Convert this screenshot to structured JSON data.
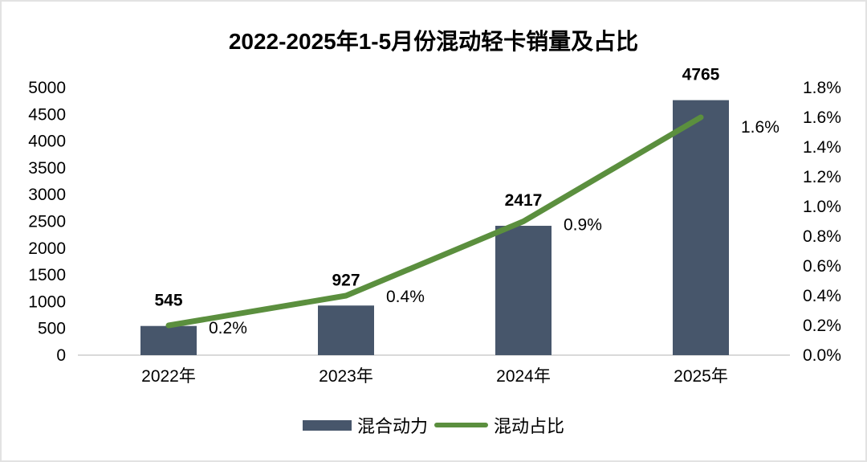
{
  "chart_data": {
    "type": "combo_bar_line",
    "title": "2022-2025年1-5月份混动轻卡销量及占比",
    "categories": [
      "2022年",
      "2023年",
      "2024年",
      "2025年"
    ],
    "series": [
      {
        "name": "混合动力",
        "type": "bar",
        "axis": "left",
        "color": "#47566B",
        "values": [
          545,
          927,
          2417,
          4765
        ],
        "data_labels": [
          "545",
          "927",
          "2417",
          "4765"
        ]
      },
      {
        "name": "混动占比",
        "type": "line",
        "axis": "right",
        "color": "#5B8F3E",
        "values": [
          0.2,
          0.4,
          0.9,
          1.6
        ],
        "data_labels": [
          "0.2%",
          "0.4%",
          "0.9%",
          "1.6%"
        ]
      }
    ],
    "left_axis": {
      "min": 0,
      "max": 5000,
      "step": 500,
      "tick_labels": [
        "0",
        "500",
        "1000",
        "1500",
        "2000",
        "2500",
        "3000",
        "3500",
        "4000",
        "4500",
        "5000"
      ]
    },
    "right_axis": {
      "min": 0.0,
      "max": 1.8,
      "step": 0.2,
      "tick_labels": [
        "0.0%",
        "0.2%",
        "0.4%",
        "0.6%",
        "0.8%",
        "1.0%",
        "1.2%",
        "1.4%",
        "1.6%",
        "1.8%"
      ]
    },
    "grid": false,
    "legend_position": "bottom",
    "axis_line_color": "#D9D9D9",
    "text_color": "#000000",
    "background": "#FFFFFF"
  }
}
